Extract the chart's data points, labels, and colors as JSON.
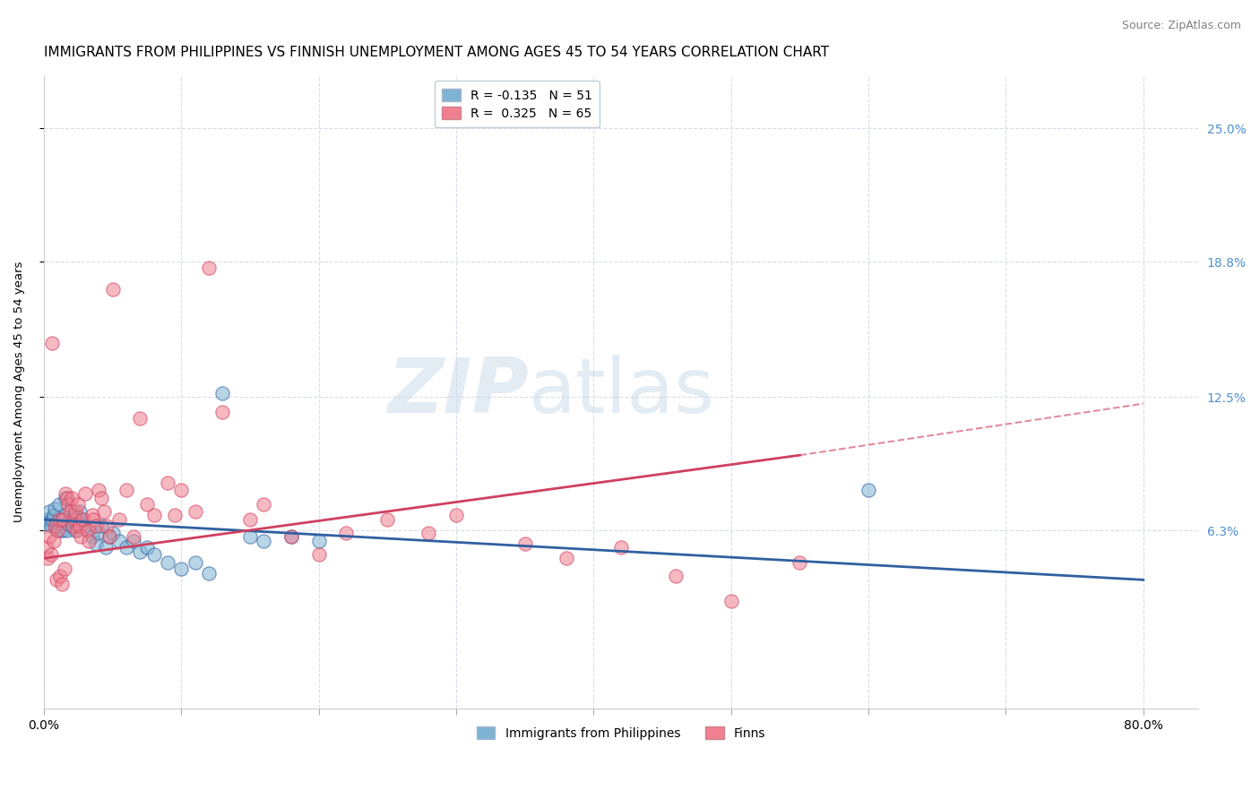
{
  "title": "IMMIGRANTS FROM PHILIPPINES VS FINNISH UNEMPLOYMENT AMONG AGES 45 TO 54 YEARS CORRELATION CHART",
  "source": "Source: ZipAtlas.com",
  "ylabel_label": "Unemployment Among Ages 45 to 54 years",
  "legend_entries": [
    {
      "label": "R = -0.135   N = 51",
      "color": "#a8c4e0"
    },
    {
      "label": "R =  0.325   N = 65",
      "color": "#f4a0b0"
    }
  ],
  "legend_labels_bottom": [
    "Immigrants from Philippines",
    "Finns"
  ],
  "watermark_left": "ZIP",
  "watermark_right": "atlas",
  "blue_scatter": [
    [
      0.002,
      0.068
    ],
    [
      0.003,
      0.066
    ],
    [
      0.004,
      0.072
    ],
    [
      0.005,
      0.065
    ],
    [
      0.006,
      0.068
    ],
    [
      0.007,
      0.07
    ],
    [
      0.008,
      0.073
    ],
    [
      0.009,
      0.065
    ],
    [
      0.01,
      0.067
    ],
    [
      0.011,
      0.075
    ],
    [
      0.012,
      0.063
    ],
    [
      0.013,
      0.068
    ],
    [
      0.014,
      0.063
    ],
    [
      0.015,
      0.07
    ],
    [
      0.016,
      0.078
    ],
    [
      0.017,
      0.063
    ],
    [
      0.018,
      0.066
    ],
    [
      0.019,
      0.068
    ],
    [
      0.02,
      0.072
    ],
    [
      0.021,
      0.065
    ],
    [
      0.022,
      0.07
    ],
    [
      0.023,
      0.063
    ],
    [
      0.024,
      0.068
    ],
    [
      0.025,
      0.065
    ],
    [
      0.026,
      0.072
    ],
    [
      0.028,
      0.068
    ],
    [
      0.03,
      0.065
    ],
    [
      0.032,
      0.063
    ],
    [
      0.035,
      0.06
    ],
    [
      0.038,
      0.057
    ],
    [
      0.04,
      0.062
    ],
    [
      0.042,
      0.065
    ],
    [
      0.045,
      0.055
    ],
    [
      0.048,
      0.06
    ],
    [
      0.05,
      0.062
    ],
    [
      0.055,
      0.058
    ],
    [
      0.06,
      0.055
    ],
    [
      0.065,
      0.058
    ],
    [
      0.07,
      0.053
    ],
    [
      0.075,
      0.055
    ],
    [
      0.08,
      0.052
    ],
    [
      0.09,
      0.048
    ],
    [
      0.1,
      0.045
    ],
    [
      0.11,
      0.048
    ],
    [
      0.12,
      0.043
    ],
    [
      0.13,
      0.127
    ],
    [
      0.15,
      0.06
    ],
    [
      0.16,
      0.058
    ],
    [
      0.18,
      0.06
    ],
    [
      0.2,
      0.058
    ],
    [
      0.6,
      0.082
    ]
  ],
  "pink_scatter": [
    [
      0.002,
      0.055
    ],
    [
      0.003,
      0.05
    ],
    [
      0.004,
      0.06
    ],
    [
      0.005,
      0.052
    ],
    [
      0.006,
      0.15
    ],
    [
      0.007,
      0.058
    ],
    [
      0.008,
      0.065
    ],
    [
      0.009,
      0.04
    ],
    [
      0.01,
      0.063
    ],
    [
      0.011,
      0.068
    ],
    [
      0.012,
      0.042
    ],
    [
      0.013,
      0.038
    ],
    [
      0.014,
      0.068
    ],
    [
      0.015,
      0.045
    ],
    [
      0.016,
      0.08
    ],
    [
      0.017,
      0.078
    ],
    [
      0.018,
      0.075
    ],
    [
      0.019,
      0.072
    ],
    [
      0.02,
      0.078
    ],
    [
      0.021,
      0.065
    ],
    [
      0.022,
      0.068
    ],
    [
      0.023,
      0.072
    ],
    [
      0.024,
      0.063
    ],
    [
      0.025,
      0.075
    ],
    [
      0.026,
      0.065
    ],
    [
      0.027,
      0.06
    ],
    [
      0.028,
      0.068
    ],
    [
      0.03,
      0.08
    ],
    [
      0.032,
      0.063
    ],
    [
      0.033,
      0.058
    ],
    [
      0.035,
      0.07
    ],
    [
      0.036,
      0.068
    ],
    [
      0.038,
      0.065
    ],
    [
      0.04,
      0.082
    ],
    [
      0.042,
      0.078
    ],
    [
      0.044,
      0.072
    ],
    [
      0.046,
      0.065
    ],
    [
      0.048,
      0.06
    ],
    [
      0.05,
      0.175
    ],
    [
      0.055,
      0.068
    ],
    [
      0.06,
      0.082
    ],
    [
      0.065,
      0.06
    ],
    [
      0.07,
      0.115
    ],
    [
      0.075,
      0.075
    ],
    [
      0.08,
      0.07
    ],
    [
      0.09,
      0.085
    ],
    [
      0.095,
      0.07
    ],
    [
      0.1,
      0.082
    ],
    [
      0.11,
      0.072
    ],
    [
      0.12,
      0.185
    ],
    [
      0.13,
      0.118
    ],
    [
      0.15,
      0.068
    ],
    [
      0.16,
      0.075
    ],
    [
      0.18,
      0.06
    ],
    [
      0.2,
      0.052
    ],
    [
      0.22,
      0.062
    ],
    [
      0.25,
      0.068
    ],
    [
      0.28,
      0.062
    ],
    [
      0.3,
      0.07
    ],
    [
      0.35,
      0.057
    ],
    [
      0.38,
      0.05
    ],
    [
      0.42,
      0.055
    ],
    [
      0.46,
      0.042
    ],
    [
      0.5,
      0.03
    ],
    [
      0.55,
      0.048
    ]
  ],
  "blue_trendline": {
    "x_start": 0.0,
    "y_start": 0.068,
    "x_end": 0.8,
    "y_end": 0.04
  },
  "pink_trendline": {
    "x_start": 0.0,
    "y_start": 0.05,
    "x_end": 0.55,
    "y_end": 0.098
  },
  "pink_trendline_dashed": {
    "x_start": 0.55,
    "y_start": 0.098,
    "x_end": 0.8,
    "y_end": 0.122
  },
  "xlim": [
    0.0,
    0.84
  ],
  "ylim": [
    -0.02,
    0.275
  ],
  "y_tick_positions": [
    0.063,
    0.125,
    0.188,
    0.25
  ],
  "y_tick_labels": [
    "6.3%",
    "12.5%",
    "18.8%",
    "25.0%"
  ],
  "x_tick_positions": [
    0.0,
    0.1,
    0.2,
    0.3,
    0.4,
    0.5,
    0.6,
    0.7,
    0.8
  ],
  "x_tick_labels_show": [
    "0.0%",
    "",
    "",
    "",
    "",
    "",
    "",
    "",
    "80.0%"
  ],
  "blue_color": "#7fb3d3",
  "pink_color": "#f08090",
  "blue_trendline_color": "#3060a0",
  "pink_trendline_color": "#d04060",
  "background_color": "#ffffff",
  "grid_color": "#d8dde8",
  "title_fontsize": 11,
  "axis_label_fontsize": 9.5,
  "tick_label_fontsize": 10,
  "right_tick_color": "#5090d0",
  "source_color": "#808080"
}
